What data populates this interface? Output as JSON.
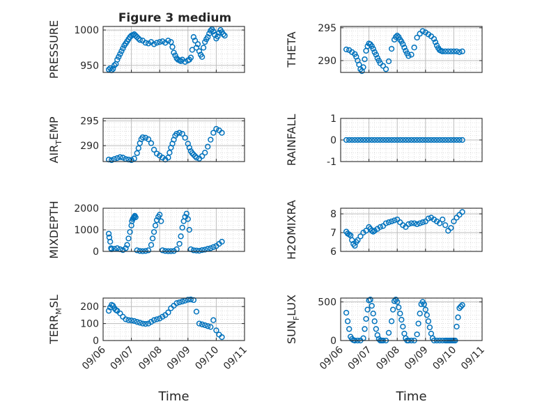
{
  "figure": {
    "title": "Figure 3 medium",
    "xlabel": "Time",
    "marker_color": "#0072BD",
    "grid": "dotted minor grid"
  },
  "chart_data": [
    {
      "type": "scatter",
      "ylabel": "PRESSURE",
      "ylim": [
        940,
        1005
      ],
      "yticks": [
        1000,
        950
      ],
      "xlim": [
        0,
        5
      ],
      "x": [
        0.2,
        0.25,
        0.3,
        0.35,
        0.4,
        0.45,
        0.5,
        0.55,
        0.6,
        0.65,
        0.7,
        0.75,
        0.8,
        0.85,
        0.9,
        0.95,
        1.0,
        1.05,
        1.1,
        1.15,
        1.2,
        1.25,
        1.3,
        1.4,
        1.5,
        1.6,
        1.7,
        1.8,
        1.9,
        2.0,
        2.1,
        2.2,
        2.3,
        2.4,
        2.45,
        2.5,
        2.55,
        2.6,
        2.65,
        2.7,
        2.75,
        2.8,
        2.9,
        3.0,
        3.05,
        3.1,
        3.15,
        3.2,
        3.25,
        3.3,
        3.35,
        3.4,
        3.45,
        3.5,
        3.55,
        3.6,
        3.65,
        3.7,
        3.75,
        3.8,
        3.85,
        3.9,
        3.95,
        4.0,
        4.05,
        4.1,
        4.15,
        4.2,
        4.25,
        4.3
      ],
      "y": [
        944,
        946,
        943,
        945,
        950,
        952,
        958,
        962,
        966,
        970,
        974,
        978,
        981,
        984,
        987,
        990,
        992,
        993,
        994,
        992,
        990,
        988,
        986,
        985,
        982,
        981,
        983,
        980,
        982,
        983,
        984,
        982,
        985,
        983,
        976,
        968,
        964,
        960,
        958,
        957,
        956,
        958,
        955,
        957,
        958,
        961,
        972,
        990,
        985,
        975,
        980,
        970,
        965,
        962,
        975,
        983,
        987,
        990,
        995,
        999,
        1001,
        998,
        993,
        988,
        991,
        996,
        1000,
        997,
        994,
        992
      ]
    },
    {
      "type": "scatter",
      "ylabel": "THETA",
      "ylim": [
        288.2,
        295.2
      ],
      "yticks": [
        295,
        290
      ],
      "xlim": [
        0,
        5
      ],
      "x": [
        0.2,
        0.3,
        0.4,
        0.5,
        0.55,
        0.6,
        0.65,
        0.7,
        0.75,
        0.8,
        0.85,
        0.9,
        0.95,
        1.0,
        1.05,
        1.1,
        1.15,
        1.2,
        1.25,
        1.3,
        1.35,
        1.4,
        1.5,
        1.6,
        1.7,
        1.8,
        1.9,
        1.95,
        2.0,
        2.05,
        2.1,
        2.15,
        2.2,
        2.25,
        2.3,
        2.35,
        2.4,
        2.5,
        2.6,
        2.7,
        2.8,
        2.9,
        3.0,
        3.1,
        3.2,
        3.3,
        3.35,
        3.4,
        3.45,
        3.5,
        3.55,
        3.6,
        3.7,
        3.8,
        3.9,
        4.0,
        4.1,
        4.2,
        4.3
      ],
      "y": [
        291.7,
        291.6,
        291.3,
        291.0,
        290.6,
        290.0,
        289.4,
        288.7,
        288.4,
        289.0,
        290.2,
        291.5,
        292.2,
        292.6,
        292.5,
        292.2,
        291.8,
        291.3,
        290.9,
        290.4,
        290.0,
        289.6,
        289.2,
        288.7,
        289.9,
        291.8,
        293.2,
        293.6,
        293.8,
        293.6,
        293.2,
        292.9,
        292.5,
        292.0,
        291.5,
        291.1,
        290.7,
        290.9,
        292.0,
        293.5,
        294.1,
        294.5,
        294.3,
        294.0,
        293.7,
        293.3,
        292.8,
        292.3,
        291.9,
        291.6,
        291.5,
        291.4,
        291.4,
        291.4,
        291.4,
        291.4,
        291.4,
        291.3,
        291.4
      ]
    },
    {
      "type": "scatter",
      "ylabel": "AIR_TEMP",
      "ylim": [
        286.8,
        295.5
      ],
      "yticks": [
        295,
        290
      ],
      "xlim": [
        0,
        5
      ],
      "x": [
        0.2,
        0.3,
        0.4,
        0.5,
        0.6,
        0.7,
        0.8,
        0.9,
        1.0,
        1.1,
        1.2,
        1.25,
        1.3,
        1.35,
        1.4,
        1.5,
        1.6,
        1.7,
        1.8,
        1.9,
        2.0,
        2.1,
        2.2,
        2.3,
        2.35,
        2.4,
        2.45,
        2.5,
        2.55,
        2.6,
        2.7,
        2.8,
        2.9,
        3.0,
        3.05,
        3.1,
        3.15,
        3.2,
        3.25,
        3.3,
        3.4,
        3.5,
        3.6,
        3.7,
        3.8,
        3.9,
        4.0,
        4.1,
        4.2
      ],
      "y": [
        287.2,
        287.1,
        287.3,
        287.5,
        287.7,
        287.6,
        287.3,
        287.2,
        287.1,
        287.4,
        288.5,
        289.5,
        290.5,
        291.3,
        291.7,
        291.6,
        291.3,
        290.5,
        289.2,
        288.4,
        288.0,
        287.6,
        287.2,
        287.6,
        288.6,
        289.6,
        290.4,
        291.2,
        292.0,
        292.4,
        292.6,
        292.4,
        291.6,
        290.4,
        289.6,
        288.9,
        288.5,
        288.2,
        287.9,
        287.6,
        287.4,
        287.9,
        288.6,
        289.8,
        291.2,
        292.6,
        293.4,
        293.1,
        292.6
      ]
    },
    {
      "type": "scatter",
      "ylabel": "RAINFALL",
      "ylim": [
        -1,
        1
      ],
      "yticks": [
        1,
        0,
        -1
      ],
      "xlim": [
        0,
        5
      ],
      "x": [
        0.2,
        0.3,
        0.4,
        0.5,
        0.6,
        0.7,
        0.8,
        0.9,
        1.0,
        1.1,
        1.2,
        1.3,
        1.4,
        1.5,
        1.6,
        1.7,
        1.8,
        1.9,
        2.0,
        2.1,
        2.2,
        2.3,
        2.4,
        2.5,
        2.6,
        2.7,
        2.8,
        2.9,
        3.0,
        3.1,
        3.2,
        3.3,
        3.4,
        3.5,
        3.6,
        3.7,
        3.8,
        3.9,
        4.0,
        4.1,
        4.2,
        4.3
      ],
      "y": [
        0,
        0,
        0,
        0,
        0,
        0,
        0,
        0,
        0,
        0,
        0,
        0,
        0,
        0,
        0,
        0,
        0,
        0,
        0,
        0,
        0,
        0,
        0,
        0,
        0,
        0,
        0,
        0,
        0,
        0,
        0,
        0,
        0,
        0,
        0,
        0,
        0,
        0,
        0,
        0,
        0,
        0
      ]
    },
    {
      "type": "scatter",
      "ylabel": "MIXDEPTH",
      "ylim": [
        0,
        2000
      ],
      "yticks": [
        2000,
        1000,
        0
      ],
      "xlim": [
        0,
        5
      ],
      "x": [
        0.2,
        0.22,
        0.25,
        0.28,
        0.3,
        0.4,
        0.5,
        0.6,
        0.7,
        0.8,
        0.85,
        0.9,
        0.95,
        1.0,
        1.02,
        1.05,
        1.08,
        1.1,
        1.12,
        1.15,
        1.2,
        1.3,
        1.4,
        1.5,
        1.6,
        1.7,
        1.75,
        1.8,
        1.85,
        1.9,
        1.95,
        2.0,
        2.05,
        2.1,
        2.2,
        2.3,
        2.4,
        2.5,
        2.6,
        2.7,
        2.75,
        2.8,
        2.85,
        2.9,
        2.95,
        3.0,
        3.05,
        3.1,
        3.2,
        3.3,
        3.4,
        3.5,
        3.6,
        3.7,
        3.8,
        3.9,
        4.0,
        4.1,
        4.2
      ],
      "y": [
        820,
        650,
        450,
        150,
        100,
        120,
        150,
        100,
        60,
        150,
        300,
        600,
        900,
        1200,
        1400,
        1500,
        1550,
        1600,
        1650,
        1580,
        50,
        20,
        10,
        20,
        50,
        300,
        600,
        900,
        1200,
        1450,
        1600,
        1700,
        1400,
        50,
        20,
        10,
        10,
        20,
        100,
        350,
        700,
        1100,
        1400,
        1600,
        1750,
        1500,
        1000,
        100,
        50,
        40,
        30,
        60,
        80,
        120,
        150,
        200,
        250,
        350,
        450
      ]
    },
    {
      "type": "scatter",
      "ylabel": "H2OMIXRA",
      "ylim": [
        6,
        8.3
      ],
      "yticks": [
        8,
        7,
        6
      ],
      "xlim": [
        0,
        5
      ],
      "x": [
        0.2,
        0.25,
        0.3,
        0.35,
        0.4,
        0.45,
        0.5,
        0.55,
        0.6,
        0.7,
        0.8,
        0.9,
        1.0,
        1.05,
        1.1,
        1.15,
        1.2,
        1.3,
        1.4,
        1.5,
        1.6,
        1.7,
        1.8,
        1.9,
        2.0,
        2.1,
        2.2,
        2.3,
        2.4,
        2.5,
        2.6,
        2.7,
        2.8,
        2.9,
        3.0,
        3.1,
        3.2,
        3.3,
        3.4,
        3.5,
        3.6,
        3.7,
        3.8,
        3.9,
        4.0,
        4.1,
        4.2,
        4.3
      ],
      "y": [
        7.05,
        6.95,
        6.9,
        6.85,
        6.6,
        6.4,
        6.3,
        6.5,
        6.6,
        6.8,
        7.0,
        7.1,
        7.3,
        7.2,
        7.1,
        7.05,
        7.1,
        7.2,
        7.3,
        7.35,
        7.5,
        7.55,
        7.6,
        7.65,
        7.7,
        7.55,
        7.4,
        7.3,
        7.45,
        7.5,
        7.5,
        7.45,
        7.5,
        7.55,
        7.6,
        7.75,
        7.8,
        7.7,
        7.6,
        7.5,
        7.7,
        7.4,
        7.1,
        7.25,
        7.6,
        7.8,
        7.95,
        8.1
      ]
    },
    {
      "type": "scatter",
      "ylabel": "TERR_MSL",
      "ylim": [
        0,
        250
      ],
      "yticks": [
        200,
        100,
        0
      ],
      "xlim": [
        0,
        5
      ],
      "x": [
        0.2,
        0.25,
        0.3,
        0.35,
        0.4,
        0.45,
        0.5,
        0.6,
        0.7,
        0.8,
        0.9,
        1.0,
        1.1,
        1.2,
        1.3,
        1.4,
        1.5,
        1.6,
        1.7,
        1.8,
        1.9,
        2.0,
        2.1,
        2.2,
        2.3,
        2.4,
        2.5,
        2.6,
        2.7,
        2.8,
        2.9,
        3.0,
        3.1,
        3.2,
        3.3,
        3.4,
        3.5,
        3.6,
        3.7,
        3.8,
        3.9,
        4.0,
        4.1,
        4.2
      ],
      "y": [
        175,
        195,
        210,
        205,
        190,
        180,
        175,
        160,
        140,
        125,
        120,
        118,
        115,
        110,
        105,
        100,
        98,
        100,
        110,
        120,
        125,
        130,
        140,
        150,
        165,
        190,
        205,
        220,
        225,
        230,
        235,
        240,
        242,
        238,
        170,
        100,
        95,
        90,
        85,
        80,
        120,
        60,
        35,
        20
      ]
    },
    {
      "type": "scatter",
      "ylabel": "SUN_FLUX",
      "ylim": [
        0,
        550
      ],
      "yticks": [
        500,
        0
      ],
      "xlim": [
        0,
        5
      ],
      "x": [
        0.2,
        0.25,
        0.3,
        0.35,
        0.4,
        0.45,
        0.5,
        0.6,
        0.7,
        0.8,
        0.85,
        0.9,
        0.95,
        1.0,
        1.05,
        1.1,
        1.15,
        1.2,
        1.25,
        1.3,
        1.35,
        1.4,
        1.45,
        1.5,
        1.6,
        1.7,
        1.8,
        1.85,
        1.9,
        1.95,
        2.0,
        2.05,
        2.1,
        2.15,
        2.2,
        2.25,
        2.3,
        2.35,
        2.4,
        2.5,
        2.6,
        2.7,
        2.75,
        2.8,
        2.85,
        2.9,
        2.95,
        3.0,
        3.05,
        3.1,
        3.15,
        3.2,
        3.25,
        3.3,
        3.4,
        3.5,
        3.6,
        3.7,
        3.75,
        3.8,
        3.85,
        3.9,
        3.95,
        4.0,
        4.05,
        4.1,
        4.15,
        4.2,
        4.25,
        4.3
      ],
      "y": [
        360,
        250,
        150,
        50,
        20,
        5,
        0,
        0,
        0,
        30,
        150,
        280,
        400,
        520,
        530,
        450,
        350,
        250,
        150,
        70,
        20,
        0,
        0,
        0,
        0,
        100,
        250,
        400,
        510,
        530,
        500,
        430,
        350,
        270,
        180,
        90,
        30,
        0,
        0,
        0,
        0,
        80,
        220,
        350,
        470,
        500,
        470,
        400,
        330,
        250,
        170,
        90,
        30,
        0,
        0,
        0,
        0,
        0,
        0,
        0,
        0,
        0,
        0,
        0,
        0,
        180,
        300,
        420,
        440,
        460
      ]
    }
  ],
  "xticks": [
    "09/06",
    "09/07",
    "09/08",
    "09/09",
    "09/10",
    "09/11"
  ]
}
